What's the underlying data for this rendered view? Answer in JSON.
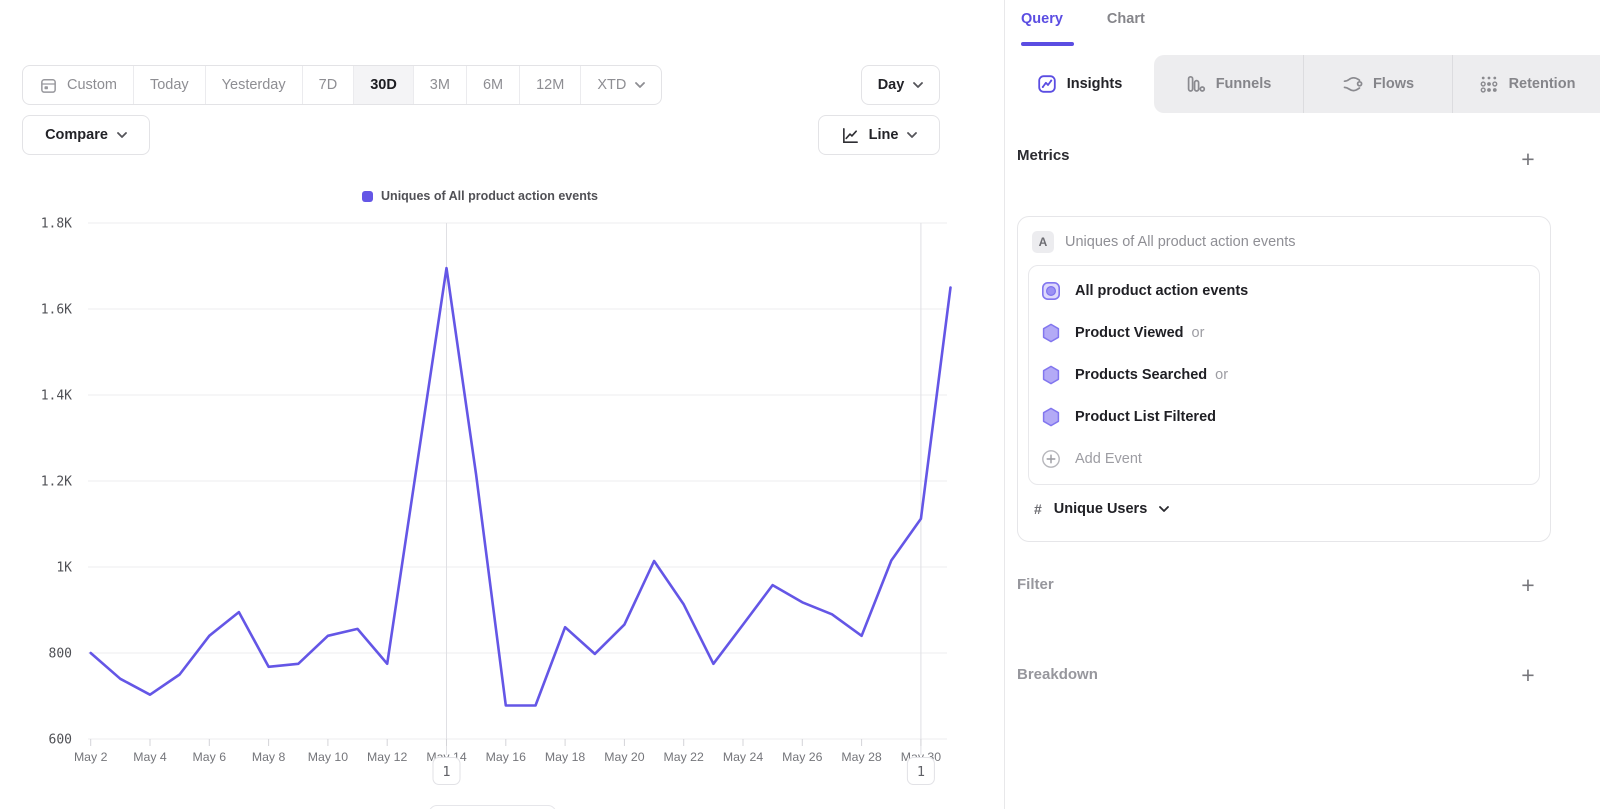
{
  "toolbar": {
    "ranges": [
      "Custom",
      "Today",
      "Yesterday",
      "7D",
      "30D",
      "3M",
      "6M",
      "12M",
      "XTD"
    ],
    "selected_range": "30D",
    "granularity": "Day",
    "compare_label": "Compare",
    "chart_type_label": "Line"
  },
  "legend_label": "Uniques of All product action events",
  "chart_data": {
    "type": "line",
    "series": [
      {
        "name": "Uniques of All product action events",
        "values": [
          800,
          740,
          703,
          750,
          840,
          895,
          768,
          775,
          840,
          856,
          775,
          1235,
          1695,
          1215,
          678,
          678,
          860,
          798,
          866,
          1014,
          913,
          775,
          866,
          958,
          918,
          890,
          840,
          1015,
          1112,
          1650
        ]
      }
    ],
    "x": [
      "May 2",
      "May 3",
      "May 4",
      "May 5",
      "May 6",
      "May 7",
      "May 8",
      "May 9",
      "May 10",
      "May 11",
      "May 12",
      "May 13",
      "May 14",
      "May 15",
      "May 16",
      "May 17",
      "May 18",
      "May 19",
      "May 20",
      "May 21",
      "May 22",
      "May 23",
      "May 24",
      "May 25",
      "May 26",
      "May 27",
      "May 28",
      "May 29",
      "May 30",
      "May 31"
    ],
    "x_tick_labels": [
      "May 2",
      "May 4",
      "May 6",
      "May 8",
      "May 10",
      "May 12",
      "May 14",
      "May 16",
      "May 18",
      "May 20",
      "May 22",
      "May 24",
      "May 26",
      "May 28",
      "May 30"
    ],
    "y_ticks": [
      600,
      800,
      1000,
      1200,
      1400,
      1600,
      1800
    ],
    "y_tick_labels": [
      "600",
      "800",
      "1K",
      "1.2K",
      "1.4K",
      "1.6K",
      "1.8K"
    ],
    "ylim": [
      600,
      1800
    ],
    "grid": "horizontal",
    "legend_position": "top-center",
    "line_color": "#6456e6",
    "annotations": [
      {
        "x": "May 14",
        "label": "1"
      },
      {
        "x": "May 30",
        "label": "1"
      }
    ]
  },
  "panel": {
    "tabs": [
      {
        "label": "Query",
        "active": true
      },
      {
        "label": "Chart",
        "active": false
      }
    ],
    "report_tabs": [
      {
        "label": "Insights",
        "icon": "insights-icon",
        "active": true
      },
      {
        "label": "Funnels",
        "icon": "funnels-icon",
        "active": false
      },
      {
        "label": "Flows",
        "icon": "flows-icon",
        "active": false
      },
      {
        "label": "Retention",
        "icon": "retention-icon",
        "active": false
      }
    ],
    "metrics": {
      "heading": "Metrics",
      "add_icon": "+",
      "series_badge": "A",
      "series_label": "Uniques of All product action events",
      "events": [
        {
          "label": "All product action events",
          "suffix": "",
          "icon": "all-events-icon"
        },
        {
          "label": "Product Viewed",
          "suffix": "or",
          "icon": "event-hexagon-icon"
        },
        {
          "label": "Products Searched",
          "suffix": "or",
          "icon": "event-hexagon-icon"
        },
        {
          "label": "Product List Filtered",
          "suffix": "",
          "icon": "event-hexagon-icon"
        }
      ],
      "add_event_label": "Add Event",
      "measurement_prefix": "#",
      "measurement": "Unique Users"
    },
    "filter": {
      "heading": "Filter",
      "add_icon": "+"
    },
    "breakdown": {
      "heading": "Breakdown",
      "add_icon": "+"
    }
  },
  "colors": {
    "accent_purple": "#5b4de2",
    "line_purple": "#6456e6",
    "hexagon_fill": "#b3aaf6",
    "hexagon_stroke": "#8276ef"
  }
}
